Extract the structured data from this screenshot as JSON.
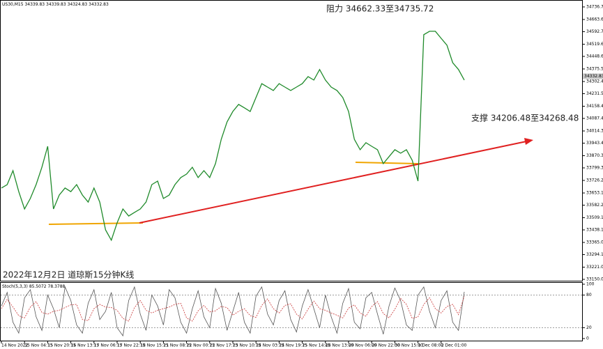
{
  "chart_data": [
    {
      "type": "line",
      "title": "US30,M15",
      "ohlc": [
        34339.83,
        34339.83,
        34324.83,
        34332.83
      ],
      "current_price": 34332.83,
      "annotations": [
        "阻力 34662.33至34735.72",
        "支撑 34206.48至34268.48",
        "2022年12月2日 道琼斯15分钟K线"
      ],
      "categories": [
        "14 Nov 2022",
        null,
        null,
        null,
        "15 Nov 04:15",
        null,
        null,
        null,
        "15 Nov 20:15",
        null,
        null,
        null,
        "16 Nov 13:15",
        null,
        null,
        null,
        "17 Nov 06:15",
        null,
        null,
        null,
        "17 Nov 22:15",
        null,
        null,
        null,
        "18 Nov 15:15",
        null,
        null,
        null,
        "21 Nov 08:15",
        null,
        null,
        null,
        "22 Nov 00:15",
        null,
        null,
        null,
        "22 Nov 17:15",
        null,
        null,
        null,
        "23 Nov 10:15",
        null,
        null,
        null,
        "24 Nov 03:15",
        null,
        null,
        null,
        "24 Nov 19:15",
        null,
        null,
        null,
        "25 Nov 14:45",
        null,
        null,
        null,
        "28 Nov 13:00",
        null,
        null,
        null,
        "29 Nov 06:00",
        null,
        null,
        null,
        "29 Nov 22:00",
        null,
        null,
        null,
        "30 Nov 15:00",
        null,
        null,
        null,
        "1 Dec 08:00",
        null,
        null,
        null,
        "2 Dec 01:00",
        null,
        null,
        null,
        null
      ],
      "series": [
        {
          "color": "#1f8a2a",
          "values": [
            33682,
            33702,
            33783,
            33661,
            33560,
            33621,
            33702,
            33803,
            33925,
            33560,
            33641,
            33682,
            33661,
            33702,
            33641,
            33600,
            33682,
            33600,
            33438,
            33378,
            33479,
            33560,
            33519,
            33540,
            33560,
            33600,
            33702,
            33722,
            33621,
            33641,
            33702,
            33743,
            33763,
            33803,
            33743,
            33783,
            33743,
            33824,
            33966,
            34067,
            34128,
            34169,
            34149,
            34128,
            34209,
            34290,
            34270,
            34250,
            34290,
            34270,
            34250,
            34270,
            34290,
            34331,
            34311,
            34372,
            34311,
            34270,
            34250,
            34209,
            34128,
            33966,
            33905,
            33946,
            33925,
            33905,
            33824,
            33865,
            33905,
            33885,
            33905,
            33844,
            33722,
            34575,
            34595,
            34595,
            34554,
            34514,
            34412,
            34372,
            34311
          ]
        }
      ],
      "ylim": [
        33142,
        34769
      ],
      "yticks": [
        34736.75,
        34663.65,
        {
          "value": 34592.7,
          "label": "34592.70"
        },
        {
          "value": 34519.6,
          "label": "34519.60"
        },
        34448.65,
        34375.55,
        34302.45,
        {
          "value": 34231.5,
          "label": "34231.50"
        },
        {
          "value": 34158.4,
          "label": "34158.40"
        },
        34087.45,
        34014.35,
        {
          "value": 33943.4,
          "label": "33943.40"
        },
        {
          "value": 33870.3,
          "label": "33870.30"
        },
        33799.35,
        33726.25,
        33653.15,
        {
          "value": 33582.2,
          "label": "33582.20"
        },
        {
          "value": 33509.1,
          "label": "33509.10"
        },
        33438.15,
        33365.05,
        {
          "value": 33294.1,
          "label": "33294.10"
        },
        {
          "value": 33221,
          "label": "33221.00"
        },
        33150.05
      ]
    },
    {
      "type": "line",
      "title": "Stoch(5,3,3)",
      "legend_values": [
        85.5072,
        78.3788
      ],
      "series": [
        {
          "color": "#555555",
          "values": [
            60,
            85,
            30,
            10,
            75,
            90,
            40,
            15,
            80,
            55,
            20,
            95,
            70,
            25,
            10,
            65,
            90,
            35,
            50,
            85,
            20,
            5,
            70,
            95,
            45,
            15,
            80,
            60,
            25,
            90,
            75,
            30,
            10,
            55,
            88,
            40,
            20,
            92,
            65,
            15,
            50,
            85,
            30,
            10,
            78,
            95,
            45,
            25,
            70,
            88,
            35,
            12,
            60,
            90,
            55,
            20,
            80,
            40,
            10,
            65,
            92,
            30,
            18,
            75,
            85,
            45,
            8,
            60,
            93,
            70,
            25,
            15,
            80,
            95,
            50,
            20,
            70,
            88,
            30,
            15,
            86
          ]
        },
        {
          "color": "#c83232",
          "values": [
            55,
            72,
            58,
            42,
            38,
            58,
            68,
            48,
            45,
            50,
            52,
            57,
            62,
            63,
            35,
            33,
            55,
            63,
            58,
            57,
            52,
            37,
            32,
            57,
            70,
            52,
            47,
            52,
            55,
            58,
            63,
            65,
            38,
            32,
            51,
            61,
            49,
            51,
            59,
            57,
            43,
            50,
            55,
            42,
            39,
            61,
            73,
            55,
            47,
            61,
            64,
            45,
            36,
            54,
            69,
            55,
            52,
            47,
            43,
            38,
            56,
            62,
            47,
            41,
            59,
            68,
            46,
            38,
            54,
            74,
            63,
            37,
            40,
            63,
            75,
            55,
            47,
            59,
            63,
            44,
            78
          ]
        }
      ],
      "ylim": [
        0,
        100
      ],
      "yticks": [
        100,
        80,
        20,
        0
      ]
    }
  ]
}
